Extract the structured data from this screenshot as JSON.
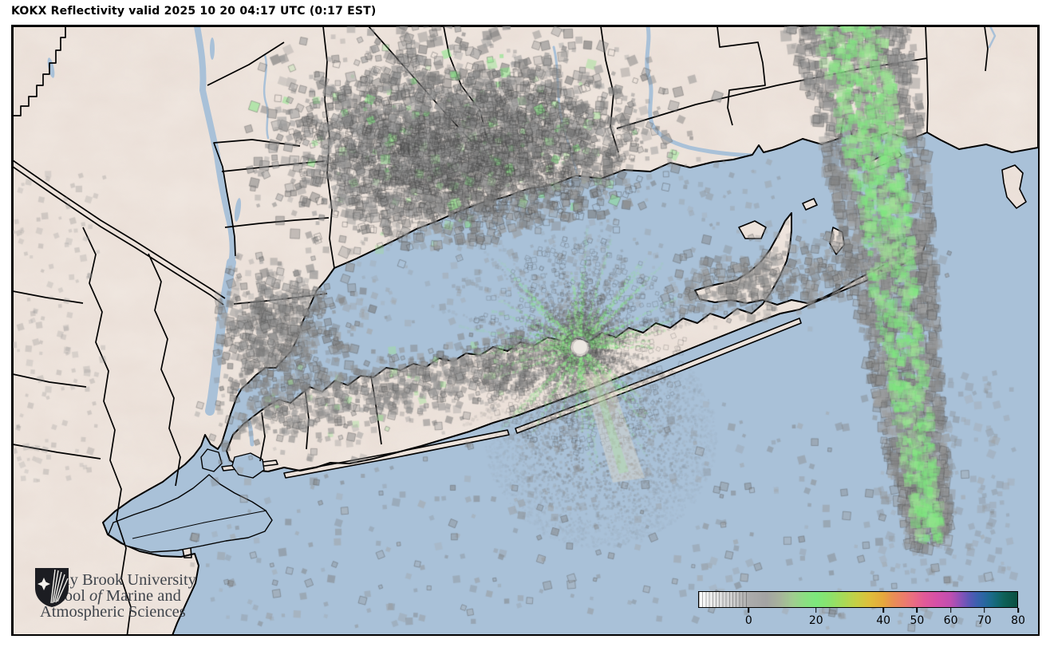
{
  "title": "KOKX Reflectivity valid 2025 10 20 04:17 UTC (0:17 EST)",
  "map": {
    "water_color": "#a9c1d8",
    "land_color": "#efe6df",
    "border_color": "#000000",
    "clutter_gray": "#8a8a8a",
    "clutter_green": "#7ee87e",
    "radar_center_color": "#ece7e1"
  },
  "colorbar": {
    "domain_min": -15,
    "domain_max": 80,
    "ticks": [
      0,
      20,
      40,
      50,
      60,
      70,
      80
    ],
    "stops": [
      [
        -15,
        "#ffffff"
      ],
      [
        -10,
        "#e6e6e6"
      ],
      [
        -5,
        "#cfcfcf"
      ],
      [
        0,
        "#ababab"
      ],
      [
        5,
        "#a3a3a3"
      ],
      [
        9,
        "#a7b29c"
      ],
      [
        13,
        "#a0cc90"
      ],
      [
        17,
        "#89e081"
      ],
      [
        20,
        "#7ce87c"
      ],
      [
        24,
        "#8be26d"
      ],
      [
        28,
        "#a7da58"
      ],
      [
        32,
        "#c6cf45"
      ],
      [
        36,
        "#dfbe3b"
      ],
      [
        40,
        "#e6a83c"
      ],
      [
        43,
        "#e98e55"
      ],
      [
        46,
        "#ec7e6a"
      ],
      [
        49,
        "#ea6d82"
      ],
      [
        52,
        "#e25b97"
      ],
      [
        56,
        "#d650a8"
      ],
      [
        60,
        "#c04fb0"
      ],
      [
        62,
        "#9e50b6"
      ],
      [
        64,
        "#7954b8"
      ],
      [
        66,
        "#5558b5"
      ],
      [
        68,
        "#3b60ae"
      ],
      [
        70,
        "#2a66a2"
      ],
      [
        72,
        "#1c6a8d"
      ],
      [
        74,
        "#136873"
      ],
      [
        76,
        "#0e6058"
      ],
      [
        80,
        "#0a4f40"
      ]
    ]
  },
  "logo": {
    "line1": "Stony Brook University",
    "line2_pre": "School",
    "line2_italic": "of",
    "line2_post": "Marine and",
    "line3": "Atmospheric Sciences"
  }
}
